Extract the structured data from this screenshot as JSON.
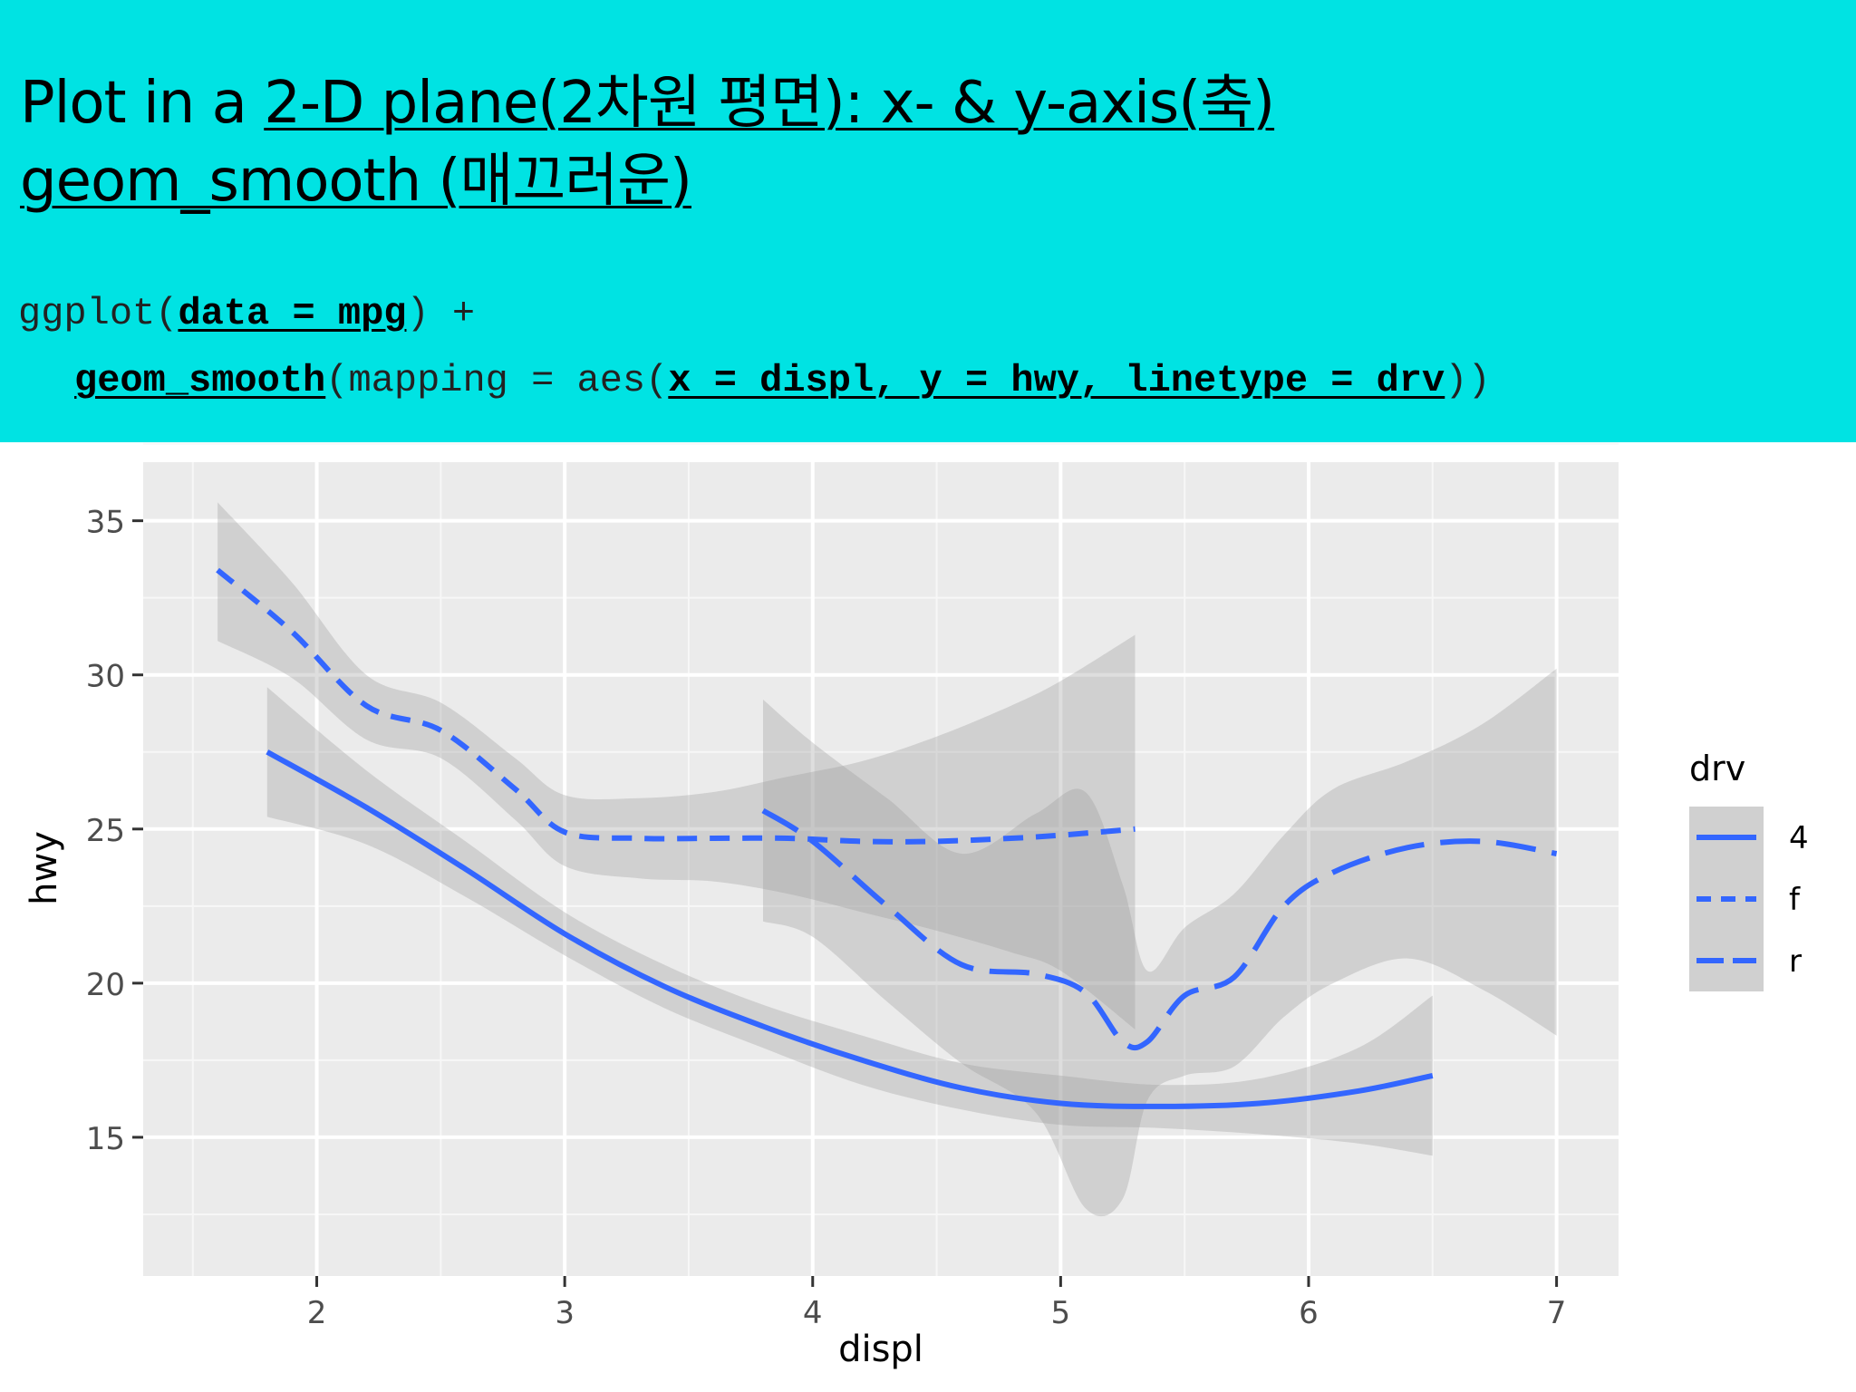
{
  "slide": {
    "title_line1_prefix": "Plot in a ",
    "title_line1_link": "2-D plane(2차원 평면): x- & y-axis(축)",
    "title_line2_link": "geom_smooth (매끄러운)",
    "code": {
      "line1_a": "ggplot(",
      "line1_u": "data = mpg",
      "line1_b": ") +",
      "line2_u1": "geom_smooth",
      "line2_a": "(mapping = aes(",
      "line2_u2": "x = displ, y = hwy, linetype = drv",
      "line2_b": "))"
    }
  },
  "chart_data": {
    "type": "line",
    "title": "",
    "xlabel": "displ",
    "ylabel": "hwy",
    "xlim": [
      1.3,
      7.25
    ],
    "ylim": [
      10.5,
      36.9
    ],
    "xticks": [
      "2",
      "3",
      "4",
      "5",
      "6",
      "7"
    ],
    "yticks": [
      "15",
      "20",
      "25",
      "30",
      "35"
    ],
    "grid": true,
    "panel_color": "#ebebeb",
    "line_color": "#3366ff",
    "band_color": "#999999",
    "legend": {
      "title": "drv",
      "position": "right"
    },
    "series": [
      {
        "name": "4",
        "linetype": "solid",
        "x": [
          1.8,
          2.2,
          2.6,
          3.0,
          3.4,
          3.8,
          4.2,
          4.6,
          5.0,
          5.4,
          5.8,
          6.2,
          6.5
        ],
        "y": [
          27.5,
          25.7,
          23.7,
          21.6,
          19.9,
          18.6,
          17.5,
          16.6,
          16.1,
          16.0,
          16.1,
          16.5,
          17.0
        ],
        "upper": [
          29.6,
          26.9,
          24.6,
          22.3,
          20.6,
          19.3,
          18.3,
          17.4,
          17.0,
          16.7,
          16.9,
          17.9,
          19.6
        ],
        "lower": [
          25.4,
          24.5,
          22.8,
          20.9,
          19.2,
          17.9,
          16.7,
          15.9,
          15.4,
          15.3,
          15.1,
          14.8,
          14.4
        ]
      },
      {
        "name": "f",
        "linetype": "dashed",
        "x": [
          1.6,
          1.9,
          2.2,
          2.5,
          2.8,
          3.0,
          3.3,
          3.6,
          3.9,
          4.2,
          4.5,
          4.8,
          5.0,
          5.3
        ],
        "y": [
          33.4,
          31.4,
          29.0,
          28.2,
          26.3,
          24.9,
          24.7,
          24.7,
          24.7,
          24.6,
          24.6,
          24.7,
          24.8,
          25.0
        ],
        "upper": [
          35.6,
          33.0,
          30.0,
          29.1,
          27.3,
          26.1,
          26.0,
          26.2,
          26.7,
          27.2,
          28.0,
          29.0,
          29.8,
          31.3
        ],
        "lower": [
          31.1,
          29.9,
          27.9,
          27.3,
          25.3,
          23.8,
          23.4,
          23.3,
          22.9,
          22.3,
          21.7,
          21.0,
          20.4,
          18.5
        ]
      },
      {
        "name": "r",
        "linetype": "longdash",
        "x": [
          3.8,
          4.0,
          4.3,
          4.6,
          4.9,
          5.1,
          5.25,
          5.35,
          5.5,
          5.7,
          5.9,
          6.1,
          6.4,
          6.7,
          7.0
        ],
        "y": [
          25.6,
          24.6,
          22.5,
          20.6,
          20.3,
          19.7,
          18.1,
          18.1,
          19.6,
          20.2,
          22.5,
          23.6,
          24.4,
          24.6,
          24.2
        ],
        "upper": [
          29.2,
          27.8,
          26.0,
          24.2,
          25.5,
          26.2,
          23.2,
          20.4,
          21.8,
          22.9,
          24.8,
          26.3,
          27.2,
          28.4,
          30.2
        ],
        "lower": [
          22.0,
          21.5,
          19.4,
          17.4,
          15.8,
          12.7,
          13.0,
          16.2,
          17.0,
          17.3,
          18.9,
          20.0,
          20.8,
          19.8,
          18.3
        ]
      }
    ]
  }
}
